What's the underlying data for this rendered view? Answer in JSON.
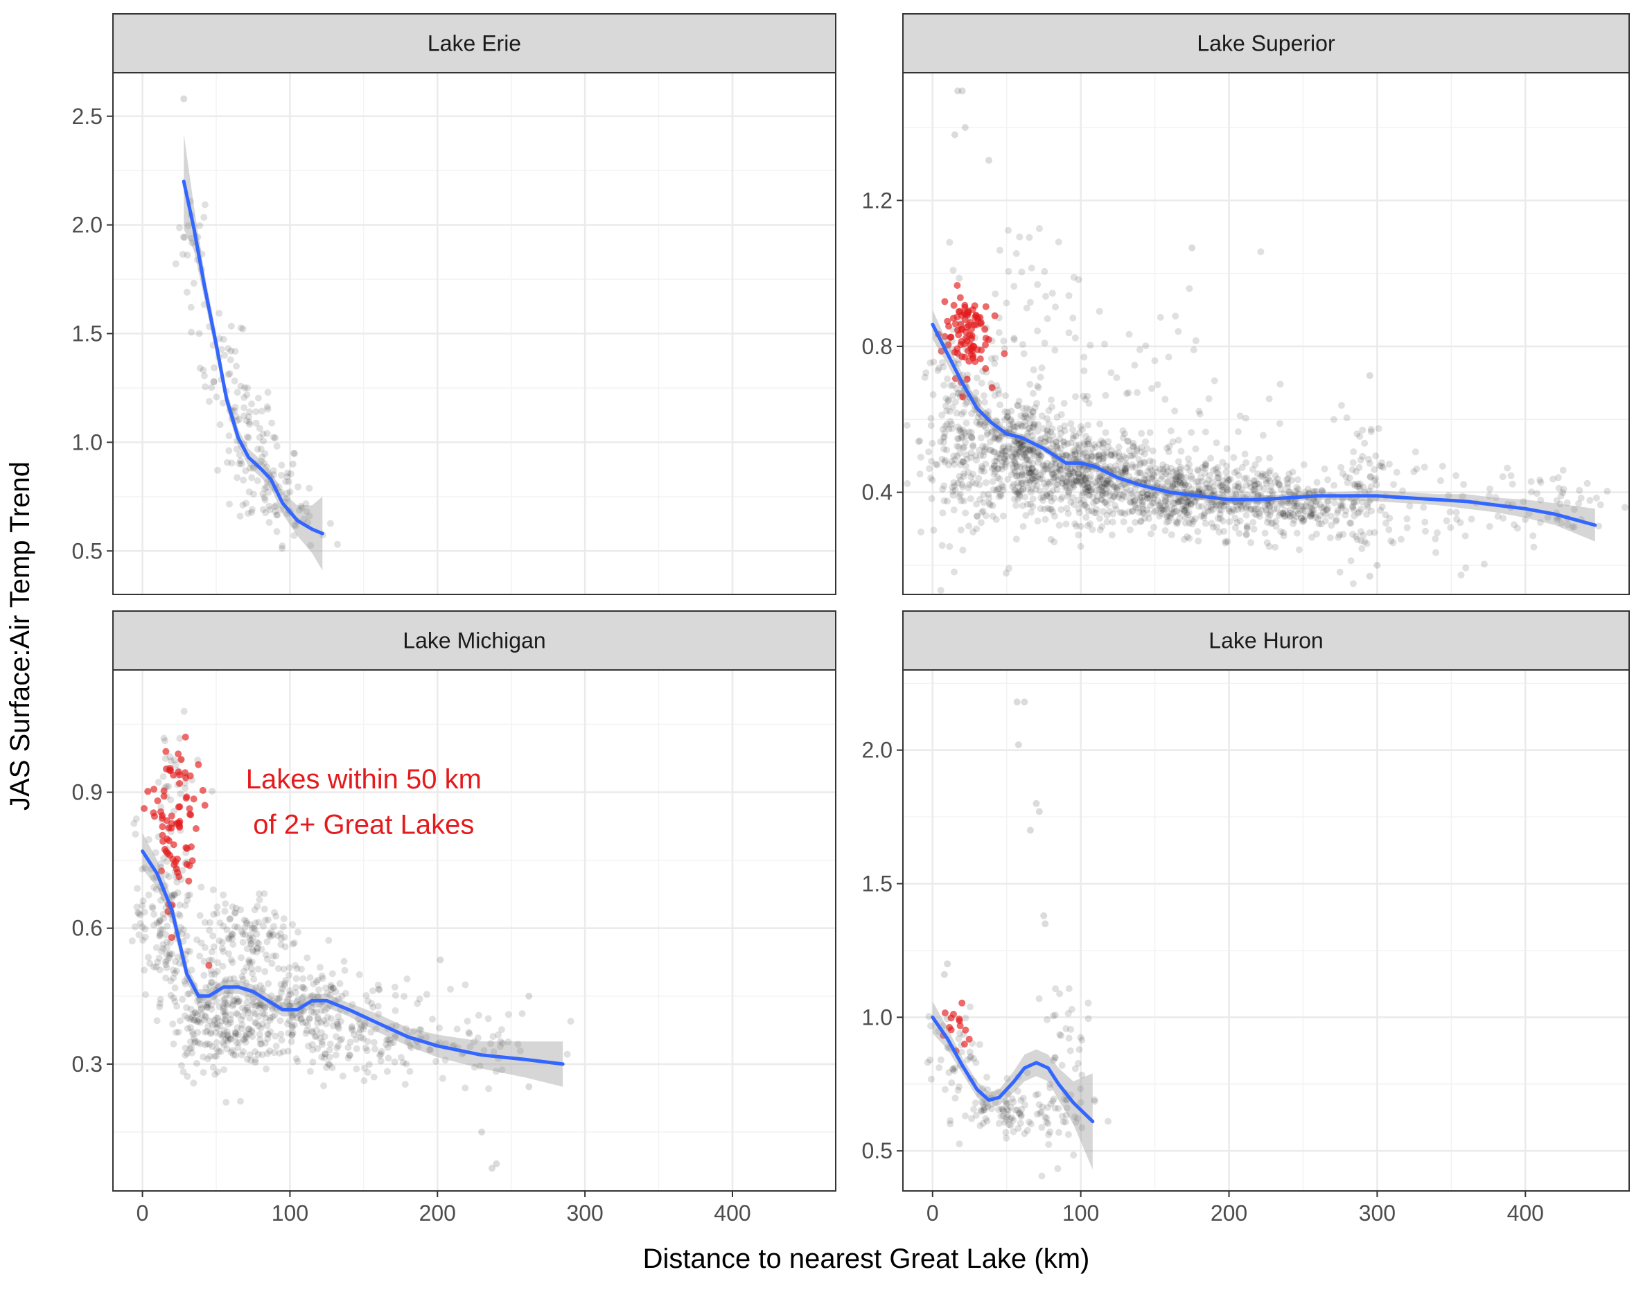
{
  "chart_data": {
    "type": "scatter",
    "xlabel": "Distance to nearest Great Lake (km)",
    "ylabel": "JAS Surface:Air Temp Trend",
    "xlim": [
      -20,
      470
    ],
    "x_ticks": [
      0,
      100,
      200,
      300,
      400
    ],
    "grid": true,
    "legend": "none",
    "colors": {
      "points": "#000000",
      "highlight": "#e41a1c",
      "smooth": "#3366ff",
      "ribbon": "#999999",
      "strip": "#d9d9d9"
    },
    "annotation": {
      "line1": "Lakes within 50 km",
      "line2": "of 2+ Great Lakes"
    },
    "panels": [
      {
        "title": "Lake Erie",
        "ylim": [
          0.3,
          2.7
        ],
        "y_ticks": [
          0.5,
          1.0,
          1.5,
          2.0,
          2.5
        ],
        "y_tick_labels": [
          "0.5",
          "1.0",
          "1.5",
          "2.0",
          "2.5"
        ],
        "smooth": {
          "x": [
            28,
            35,
            42,
            50,
            57,
            65,
            72,
            80,
            87,
            95,
            105,
            115,
            122
          ],
          "y": [
            2.2,
            1.98,
            1.72,
            1.45,
            1.2,
            1.02,
            0.93,
            0.88,
            0.83,
            0.72,
            0.64,
            0.6,
            0.58
          ]
        },
        "ribbon_hw": [
          0.22,
          0.1,
          0.06,
          0.05,
          0.04,
          0.04,
          0.04,
          0.04,
          0.04,
          0.05,
          0.07,
          0.11,
          0.17
        ],
        "clusters": [
          {
            "x": 35,
            "y": 1.9,
            "sx": 6,
            "sy": 0.15,
            "n": 25
          },
          {
            "x": 55,
            "y": 1.35,
            "sx": 8,
            "sy": 0.12,
            "n": 30
          },
          {
            "x": 70,
            "y": 1.05,
            "sx": 10,
            "sy": 0.12,
            "n": 60
          },
          {
            "x": 85,
            "y": 0.8,
            "sx": 12,
            "sy": 0.1,
            "n": 60
          },
          {
            "x": 105,
            "y": 0.65,
            "sx": 10,
            "sy": 0.06,
            "n": 25
          }
        ],
        "outliers": [
          [
            28,
            2.58
          ],
          [
            60,
            1.42
          ],
          [
            90,
            1.02
          ],
          [
            102,
            0.9
          ]
        ],
        "highlight": []
      },
      {
        "title": "Lake Superior",
        "ylim": [
          0.12,
          1.55
        ],
        "y_ticks": [
          0.4,
          0.8,
          1.2
        ],
        "y_tick_labels": [
          "0.4",
          "0.8",
          "1.2"
        ],
        "smooth": {
          "x": [
            0,
            10,
            20,
            30,
            40,
            50,
            60,
            75,
            90,
            100,
            110,
            125,
            140,
            160,
            180,
            200,
            220,
            240,
            260,
            280,
            300,
            320,
            340,
            360,
            380,
            400,
            420,
            447
          ],
          "y": [
            0.86,
            0.78,
            0.7,
            0.63,
            0.59,
            0.56,
            0.55,
            0.52,
            0.48,
            0.48,
            0.47,
            0.44,
            0.42,
            0.4,
            0.39,
            0.38,
            0.38,
            0.385,
            0.39,
            0.39,
            0.39,
            0.385,
            0.38,
            0.375,
            0.365,
            0.355,
            0.34,
            0.31
          ]
        },
        "ribbon_hw": [
          0.04,
          0.03,
          0.025,
          0.02,
          0.015,
          0.012,
          0.01,
          0.01,
          0.01,
          0.01,
          0.01,
          0.01,
          0.01,
          0.01,
          0.01,
          0.01,
          0.01,
          0.01,
          0.01,
          0.012,
          0.015,
          0.015,
          0.015,
          0.02,
          0.02,
          0.025,
          0.03,
          0.045
        ],
        "clusters": [
          {
            "x": 20,
            "y": 0.55,
            "sx": 14,
            "sy": 0.14,
            "n": 220
          },
          {
            "x": 60,
            "y": 0.5,
            "sx": 18,
            "sy": 0.08,
            "n": 380
          },
          {
            "x": 110,
            "y": 0.44,
            "sx": 22,
            "sy": 0.06,
            "n": 420
          },
          {
            "x": 170,
            "y": 0.39,
            "sx": 25,
            "sy": 0.05,
            "n": 380
          },
          {
            "x": 240,
            "y": 0.37,
            "sx": 25,
            "sy": 0.05,
            "n": 280
          },
          {
            "x": 290,
            "y": 0.42,
            "sx": 10,
            "sy": 0.1,
            "n": 70
          },
          {
            "x": 60,
            "y": 0.9,
            "sx": 20,
            "sy": 0.12,
            "n": 50
          },
          {
            "x": 150,
            "y": 0.65,
            "sx": 45,
            "sy": 0.15,
            "n": 70
          },
          {
            "x": 350,
            "y": 0.35,
            "sx": 40,
            "sy": 0.07,
            "n": 70
          },
          {
            "x": 420,
            "y": 0.38,
            "sx": 20,
            "sy": 0.05,
            "n": 35
          }
        ],
        "outliers": [
          [
            17,
            1.5
          ],
          [
            20,
            1.5
          ],
          [
            22,
            1.4
          ],
          [
            15,
            1.38
          ],
          [
            38,
            1.31
          ],
          [
            175,
            1.07
          ],
          [
            295,
            0.72
          ],
          [
            300,
            0.2
          ],
          [
            295,
            0.17
          ]
        ],
        "highlight": [
          {
            "x": 22,
            "y": 0.84,
            "sx": 8,
            "sy": 0.06,
            "n": 90
          }
        ]
      },
      {
        "title": "Lake Michigan",
        "ylim": [
          0.02,
          1.17
        ],
        "y_ticks": [
          0.3,
          0.6,
          0.9
        ],
        "y_tick_labels": [
          "0.3",
          "0.6",
          "0.9"
        ],
        "smooth": {
          "x": [
            0,
            10,
            20,
            30,
            38,
            45,
            55,
            65,
            75,
            85,
            95,
            105,
            115,
            125,
            140,
            160,
            180,
            200,
            230,
            260,
            285
          ],
          "y": [
            0.77,
            0.72,
            0.64,
            0.5,
            0.45,
            0.45,
            0.47,
            0.47,
            0.46,
            0.44,
            0.42,
            0.42,
            0.44,
            0.44,
            0.42,
            0.39,
            0.36,
            0.34,
            0.32,
            0.31,
            0.3
          ]
        },
        "ribbon_hw": [
          0.04,
          0.03,
          0.025,
          0.02,
          0.015,
          0.015,
          0.015,
          0.015,
          0.015,
          0.015,
          0.015,
          0.015,
          0.015,
          0.015,
          0.015,
          0.02,
          0.02,
          0.025,
          0.03,
          0.04,
          0.05
        ],
        "clusters": [
          {
            "x": 15,
            "y": 0.62,
            "sx": 10,
            "sy": 0.1,
            "n": 150
          },
          {
            "x": 55,
            "y": 0.4,
            "sx": 18,
            "sy": 0.06,
            "n": 260
          },
          {
            "x": 70,
            "y": 0.58,
            "sx": 15,
            "sy": 0.05,
            "n": 120
          },
          {
            "x": 110,
            "y": 0.41,
            "sx": 20,
            "sy": 0.06,
            "n": 200
          },
          {
            "x": 160,
            "y": 0.37,
            "sx": 25,
            "sy": 0.05,
            "n": 100
          },
          {
            "x": 220,
            "y": 0.34,
            "sx": 30,
            "sy": 0.04,
            "n": 50
          },
          {
            "x": 20,
            "y": 0.94,
            "sx": 10,
            "sy": 0.05,
            "n": 30
          }
        ],
        "outliers": [
          [
            230,
            0.15
          ],
          [
            237,
            0.07
          ],
          [
            240,
            0.08
          ],
          [
            202,
            0.53
          ],
          [
            262,
            0.45
          ],
          [
            262,
            0.25
          ]
        ],
        "highlight": [
          {
            "x": 22,
            "y": 0.82,
            "sx": 9,
            "sy": 0.1,
            "n": 80
          }
        ]
      },
      {
        "title": "Lake Huron",
        "ylim": [
          0.35,
          2.3
        ],
        "y_ticks": [
          0.5,
          1.0,
          1.5,
          2.0
        ],
        "y_tick_labels": [
          "0.5",
          "1.0",
          "1.5",
          "2.0"
        ],
        "smooth": {
          "x": [
            0,
            10,
            20,
            30,
            38,
            45,
            55,
            62,
            70,
            78,
            85,
            95,
            108
          ],
          "y": [
            1.0,
            0.92,
            0.82,
            0.73,
            0.69,
            0.7,
            0.76,
            0.81,
            0.83,
            0.81,
            0.75,
            0.68,
            0.61
          ]
        },
        "ribbon_hw": [
          0.06,
          0.04,
          0.03,
          0.03,
          0.03,
          0.03,
          0.04,
          0.05,
          0.05,
          0.05,
          0.06,
          0.08,
          0.18
        ],
        "clusters": [
          {
            "x": 15,
            "y": 0.85,
            "sx": 10,
            "sy": 0.08,
            "n": 40
          },
          {
            "x": 45,
            "y": 0.66,
            "sx": 12,
            "sy": 0.05,
            "n": 70
          },
          {
            "x": 80,
            "y": 0.63,
            "sx": 15,
            "sy": 0.08,
            "n": 60
          },
          {
            "x": 90,
            "y": 0.95,
            "sx": 8,
            "sy": 0.1,
            "n": 25
          }
        ],
        "outliers": [
          [
            57,
            2.18
          ],
          [
            62,
            2.18
          ],
          [
            58,
            2.02
          ],
          [
            70,
            1.8
          ],
          [
            72,
            1.77
          ],
          [
            66,
            1.7
          ],
          [
            75,
            1.38
          ],
          [
            76,
            1.35
          ],
          [
            10,
            1.2
          ],
          [
            8,
            1.16
          ]
        ],
        "highlight": [
          {
            "x": 17,
            "y": 0.95,
            "sx": 7,
            "sy": 0.08,
            "n": 14
          }
        ]
      }
    ]
  }
}
